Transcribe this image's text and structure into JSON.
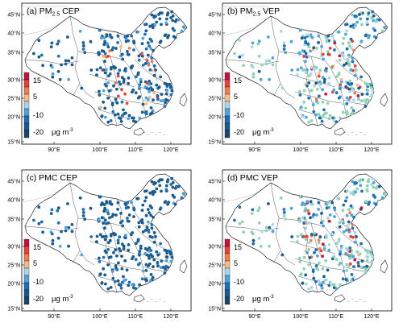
{
  "figure": {
    "panels": [
      {
        "id": "a",
        "title_prefix": "(a) PM",
        "title_sub": "2.5",
        "title_suffix": " CEP",
        "scheme": "cep_pm"
      },
      {
        "id": "b",
        "title_prefix": "(b) PM",
        "title_sub": "2.5",
        "title_suffix": " VEP",
        "scheme": "vep"
      },
      {
        "id": "c",
        "title_prefix": "(c) PMC CEP",
        "title_sub": "",
        "title_suffix": "",
        "scheme": "cep_pmc"
      },
      {
        "id": "d",
        "title_prefix": "(d) PMC VEP",
        "title_sub": "",
        "title_suffix": "",
        "scheme": "vep"
      }
    ],
    "lat_labels": [
      "45°N",
      "40°N",
      "35°N",
      "30°N",
      "25°N",
      "20°N",
      "15°N"
    ],
    "lon_labels": [
      "90°E",
      "100°E",
      "110°E",
      "120°E"
    ],
    "colorbar": {
      "labels": [
        "15",
        "5",
        "-10",
        "-20"
      ],
      "unit_prefix": "μg m",
      "unit_sup": "-3",
      "colors": [
        "#c4143c",
        "#e8413a",
        "#f27e4f",
        "#f8ba8a",
        "#a9d6e6",
        "#4fa4dc",
        "#1f6fb5",
        "#1a5a8c",
        "#1d4568"
      ]
    }
  }
}
